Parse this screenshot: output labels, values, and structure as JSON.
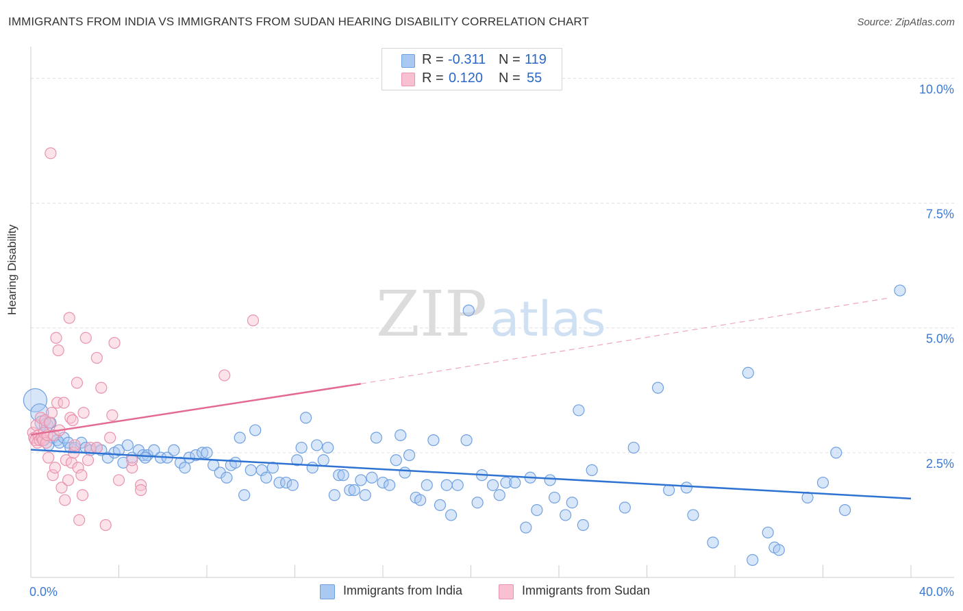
{
  "title": "IMMIGRANTS FROM INDIA VS IMMIGRANTS FROM SUDAN HEARING DISABILITY CORRELATION CHART",
  "source": "Source: ZipAtlas.com",
  "watermark": {
    "zip": "ZIP",
    "atlas": "atlas"
  },
  "legend": {
    "r_label": "R =",
    "n_label": "N =",
    "rows": [
      {
        "r": "-0.311",
        "n": "119",
        "color": "#a9c8f2",
        "border": "#6fa0e0"
      },
      {
        "r": "0.120",
        "n": "55",
        "color": "#f8c0d0",
        "border": "#e893ad"
      }
    ]
  },
  "bottom_legend": [
    {
      "label": "Immigrants from India",
      "color": "#a9c8f2",
      "border": "#6fa0e0"
    },
    {
      "label": "Immigrants from Sudan",
      "color": "#f8c0d0",
      "border": "#e893ad"
    }
  ],
  "chart_data": {
    "type": "scatter",
    "title": "IMMIGRANTS FROM INDIA VS IMMIGRANTS FROM SUDAN HEARING DISABILITY CORRELATION CHART",
    "xlabel": "",
    "ylabel": "Hearing Disability",
    "xlim": [
      0,
      40
    ],
    "ylim": [
      0,
      10.5
    ],
    "x_tick_labels": [
      {
        "value": 0,
        "label": "0.0%"
      },
      {
        "value": 40,
        "label": "40.0%"
      }
    ],
    "y_tick_labels": [
      {
        "value": 2.5,
        "label": "2.5%"
      },
      {
        "value": 5.0,
        "label": "5.0%"
      },
      {
        "value": 7.5,
        "label": "7.5%"
      },
      {
        "value": 10.0,
        "label": "10.0%"
      }
    ],
    "x_minor_ticks": [
      0,
      4,
      8,
      12,
      16,
      20,
      24,
      28,
      32,
      36,
      40
    ],
    "grid": true,
    "legend_position": "top-center",
    "series": [
      {
        "name": "Immigrants from India",
        "color": "#6fa0e0",
        "fill": "#a9c8f2",
        "trend": {
          "x0": 0,
          "y0": 2.56,
          "x1": 40,
          "y1": 1.58,
          "dashed_from": null,
          "line_color": "#2e72d2"
        },
        "points": [
          [
            0.2,
            3.55
          ],
          [
            0.4,
            3.3
          ],
          [
            0.5,
            3.1
          ],
          [
            0.6,
            2.75
          ],
          [
            0.7,
            3.05
          ],
          [
            0.8,
            2.65
          ],
          [
            0.9,
            3.1
          ],
          [
            1.0,
            2.8
          ],
          [
            1.2,
            2.75
          ],
          [
            1.3,
            2.7
          ],
          [
            1.5,
            2.8
          ],
          [
            1.7,
            2.7
          ],
          [
            1.8,
            2.6
          ],
          [
            2.0,
            2.6
          ],
          [
            2.3,
            2.7
          ],
          [
            2.5,
            2.6
          ],
          [
            2.7,
            2.55
          ],
          [
            3.0,
            2.6
          ],
          [
            3.2,
            2.55
          ],
          [
            3.5,
            2.4
          ],
          [
            3.8,
            2.5
          ],
          [
            4.0,
            2.55
          ],
          [
            4.2,
            2.3
          ],
          [
            4.4,
            2.65
          ],
          [
            4.6,
            2.4
          ],
          [
            4.9,
            2.55
          ],
          [
            5.1,
            2.45
          ],
          [
            5.3,
            2.45
          ],
          [
            5.6,
            2.55
          ],
          [
            5.9,
            2.4
          ],
          [
            6.2,
            2.4
          ],
          [
            6.5,
            2.55
          ],
          [
            6.8,
            2.3
          ],
          [
            7.0,
            2.2
          ],
          [
            7.2,
            2.4
          ],
          [
            7.5,
            2.45
          ],
          [
            7.8,
            2.5
          ],
          [
            8.0,
            2.5
          ],
          [
            8.3,
            2.25
          ],
          [
            8.6,
            2.1
          ],
          [
            8.9,
            2.0
          ],
          [
            9.1,
            2.25
          ],
          [
            9.3,
            2.3
          ],
          [
            9.5,
            2.8
          ],
          [
            9.7,
            1.65
          ],
          [
            10.0,
            2.15
          ],
          [
            10.2,
            2.95
          ],
          [
            10.5,
            2.15
          ],
          [
            10.7,
            2.0
          ],
          [
            11.0,
            2.2
          ],
          [
            11.3,
            1.9
          ],
          [
            11.6,
            1.9
          ],
          [
            11.9,
            1.85
          ],
          [
            12.1,
            2.35
          ],
          [
            12.3,
            2.6
          ],
          [
            12.5,
            3.2
          ],
          [
            12.8,
            2.2
          ],
          [
            13.0,
            2.65
          ],
          [
            13.3,
            2.35
          ],
          [
            13.5,
            2.6
          ],
          [
            13.8,
            1.65
          ],
          [
            14.0,
            2.05
          ],
          [
            14.2,
            2.05
          ],
          [
            14.5,
            1.75
          ],
          [
            14.7,
            1.75
          ],
          [
            15.0,
            1.95
          ],
          [
            15.2,
            1.65
          ],
          [
            15.5,
            2.0
          ],
          [
            15.7,
            2.8
          ],
          [
            16.0,
            1.9
          ],
          [
            16.3,
            1.85
          ],
          [
            16.6,
            2.35
          ],
          [
            16.8,
            2.85
          ],
          [
            17.0,
            2.1
          ],
          [
            17.2,
            2.45
          ],
          [
            17.5,
            1.6
          ],
          [
            17.7,
            1.55
          ],
          [
            18.0,
            1.85
          ],
          [
            18.3,
            2.75
          ],
          [
            18.6,
            1.45
          ],
          [
            18.9,
            1.85
          ],
          [
            19.1,
            1.25
          ],
          [
            19.4,
            1.85
          ],
          [
            19.8,
            2.75
          ],
          [
            19.9,
            5.35
          ],
          [
            20.3,
            1.5
          ],
          [
            20.5,
            2.05
          ],
          [
            21.0,
            1.85
          ],
          [
            21.3,
            1.65
          ],
          [
            21.6,
            1.9
          ],
          [
            22.0,
            1.9
          ],
          [
            22.5,
            1.0
          ],
          [
            22.7,
            2.0
          ],
          [
            23.0,
            1.35
          ],
          [
            23.6,
            1.95
          ],
          [
            23.8,
            1.6
          ],
          [
            24.3,
            1.25
          ],
          [
            24.6,
            1.5
          ],
          [
            24.9,
            3.35
          ],
          [
            25.1,
            1.05
          ],
          [
            25.5,
            2.15
          ],
          [
            27.0,
            1.4
          ],
          [
            27.4,
            2.6
          ],
          [
            28.5,
            3.8
          ],
          [
            29.0,
            1.75
          ],
          [
            29.8,
            1.8
          ],
          [
            30.1,
            1.25
          ],
          [
            31.0,
            0.7
          ],
          [
            32.6,
            4.1
          ],
          [
            32.8,
            0.35
          ],
          [
            33.5,
            0.9
          ],
          [
            33.8,
            0.6
          ],
          [
            34.0,
            0.55
          ],
          [
            35.3,
            1.6
          ],
          [
            36.0,
            1.9
          ],
          [
            36.6,
            2.5
          ],
          [
            37.0,
            1.35
          ],
          [
            39.5,
            5.75
          ],
          [
            5.2,
            2.4
          ]
        ]
      },
      {
        "name": "Immigrants from Sudan",
        "color": "#e893ad",
        "fill": "#f8c0d0",
        "trend": {
          "x0": 0,
          "y0": 2.86,
          "x1": 15,
          "y1": 3.88,
          "dashed_to_x": 39,
          "dashed_to_y": 5.6,
          "line_color": "#e36a93"
        },
        "points": [
          [
            0.1,
            2.9
          ],
          [
            0.15,
            2.8
          ],
          [
            0.2,
            2.75
          ],
          [
            0.25,
            3.05
          ],
          [
            0.3,
            2.7
          ],
          [
            0.35,
            2.85
          ],
          [
            0.4,
            2.75
          ],
          [
            0.45,
            3.2
          ],
          [
            0.5,
            2.8
          ],
          [
            0.55,
            2.75
          ],
          [
            0.6,
            2.9
          ],
          [
            0.65,
            3.15
          ],
          [
            0.7,
            2.7
          ],
          [
            0.75,
            2.85
          ],
          [
            0.8,
            2.4
          ],
          [
            0.85,
            3.1
          ],
          [
            0.9,
            8.5
          ],
          [
            0.95,
            3.3
          ],
          [
            1.0,
            2.05
          ],
          [
            1.05,
            2.85
          ],
          [
            1.1,
            2.2
          ],
          [
            1.15,
            4.8
          ],
          [
            1.2,
            3.5
          ],
          [
            1.25,
            4.55
          ],
          [
            1.3,
            2.95
          ],
          [
            1.4,
            1.8
          ],
          [
            1.5,
            3.5
          ],
          [
            1.55,
            1.55
          ],
          [
            1.6,
            2.35
          ],
          [
            1.7,
            1.95
          ],
          [
            1.75,
            5.2
          ],
          [
            1.8,
            3.2
          ],
          [
            1.85,
            2.3
          ],
          [
            1.9,
            3.15
          ],
          [
            1.95,
            2.5
          ],
          [
            2.0,
            2.65
          ],
          [
            2.1,
            3.9
          ],
          [
            2.15,
            2.2
          ],
          [
            2.2,
            1.15
          ],
          [
            2.3,
            2.05
          ],
          [
            2.35,
            1.65
          ],
          [
            2.4,
            3.3
          ],
          [
            2.5,
            4.8
          ],
          [
            2.6,
            2.35
          ],
          [
            2.7,
            2.6
          ],
          [
            3.0,
            2.6
          ],
          [
            3.0,
            4.4
          ],
          [
            3.2,
            3.8
          ],
          [
            3.4,
            1.05
          ],
          [
            3.7,
            3.25
          ],
          [
            3.6,
            2.8
          ],
          [
            4.6,
            2.2
          ],
          [
            4.6,
            2.35
          ],
          [
            5.0,
            1.85
          ],
          [
            8.8,
            4.05
          ]
        ]
      }
    ],
    "extra_sudan": [
      [
        4.0,
        1.95
      ],
      [
        5.0,
        1.75
      ],
      [
        3.8,
        4.7
      ],
      [
        10.1,
        5.15
      ]
    ]
  }
}
